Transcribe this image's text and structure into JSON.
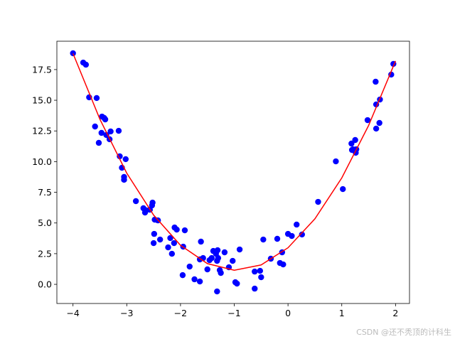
{
  "chart_data": {
    "type": "scatter",
    "xlim": [
      -4.3,
      2.26
    ],
    "ylim": [
      -1.56,
      19.81
    ],
    "xticks": [
      {
        "value": -4,
        "label": "−4"
      },
      {
        "value": -3,
        "label": "−3"
      },
      {
        "value": -2,
        "label": "−2"
      },
      {
        "value": -1,
        "label": "−1"
      },
      0,
      1,
      2
    ],
    "yticks": [
      {
        "value": 0,
        "label": "0.0"
      },
      {
        "value": 2.5,
        "label": "2.5"
      },
      {
        "value": 5,
        "label": "5.0"
      },
      {
        "value": 7.5,
        "label": "7.5"
      },
      {
        "value": 10,
        "label": "10.0"
      },
      {
        "value": 12.5,
        "label": "12.5"
      },
      {
        "value": 15,
        "label": "15.0"
      },
      {
        "value": 17.5,
        "label": "17.5"
      }
    ],
    "series": [
      {
        "type": "scatter",
        "color": "#0000ff",
        "x": [
          -4.0,
          -3.81,
          -3.76,
          -3.7,
          -3.56,
          -3.59,
          -3.52,
          -3.47,
          -3.46,
          -3.42,
          -3.4,
          -3.38,
          -3.32,
          -3.3,
          -3.15,
          -3.13,
          -3.09,
          -3.02,
          -3.05,
          -3.05,
          -2.83,
          -2.69,
          -2.66,
          -2.64,
          -2.57,
          -2.52,
          -2.53,
          -2.48,
          -2.42,
          -2.49,
          -2.5,
          -2.38,
          -2.23,
          -2.19,
          -2.16,
          -2.12,
          -2.11,
          -2.07,
          -1.95,
          -1.92,
          -1.96,
          -1.83,
          -1.74,
          -1.64,
          -1.64,
          -1.62,
          -1.58,
          -1.5,
          -1.46,
          -1.42,
          -1.39,
          -1.32,
          -1.34,
          -1.31,
          -1.3,
          -1.32,
          -1.27,
          -1.25,
          -1.18,
          -1.1,
          -1.03,
          -0.98,
          -0.95,
          -0.9,
          -0.62,
          -0.62,
          -0.52,
          -0.5,
          -0.46,
          -0.32,
          -0.2,
          -0.15,
          -0.09,
          -0.11,
          0.0,
          0.07,
          0.16,
          0.26,
          0.56,
          0.89,
          1.02,
          1.18,
          1.21,
          1.19,
          1.25,
          1.26,
          1.27,
          1.48,
          1.63,
          1.64,
          1.64,
          1.7,
          1.71,
          1.92,
          1.96
        ],
        "values": [
          18.83,
          18.07,
          17.9,
          15.24,
          15.18,
          12.86,
          11.53,
          12.34,
          13.67,
          13.56,
          13.44,
          12.17,
          11.82,
          12.46,
          12.51,
          10.43,
          9.5,
          10.2,
          8.75,
          8.52,
          6.78,
          6.2,
          5.85,
          6.03,
          6.08,
          6.66,
          6.43,
          5.27,
          5.21,
          4.11,
          3.36,
          3.65,
          3.01,
          3.77,
          2.49,
          3.36,
          4.63,
          4.46,
          3.07,
          4.4,
          0.75,
          1.45,
          0.41,
          0.23,
          2.03,
          3.48,
          2.14,
          1.22,
          1.97,
          2.14,
          2.72,
          -0.58,
          2.49,
          2.78,
          2.14,
          1.91,
          1.16,
          0.93,
          2.61,
          1.39,
          1.91,
          0.17,
          0.06,
          2.84,
          -0.35,
          1.04,
          1.1,
          0.58,
          3.65,
          2.09,
          3.71,
          1.74,
          1.62,
          2.61,
          4.11,
          3.94,
          4.87,
          4.06,
          6.72,
          10.02,
          7.76,
          11.47,
          11.0,
          10.95,
          11.76,
          10.72,
          11.0,
          13.38,
          16.51,
          14.66,
          12.69,
          13.15,
          15.06,
          17.09,
          17.96
        ]
      },
      {
        "type": "line",
        "color": "#ff0000",
        "x": [
          -4,
          -3.5,
          -3,
          -2.5,
          -2,
          -1.5,
          -1,
          -0.5,
          0,
          0.5,
          1,
          1.5,
          2
        ],
        "values": [
          18.81,
          13.46,
          9.06,
          5.64,
          3.18,
          1.69,
          1.15,
          1.58,
          2.98,
          5.34,
          8.67,
          12.95,
          18.2
        ]
      }
    ]
  },
  "watermark": "CSDN @还不秃顶的计科生"
}
